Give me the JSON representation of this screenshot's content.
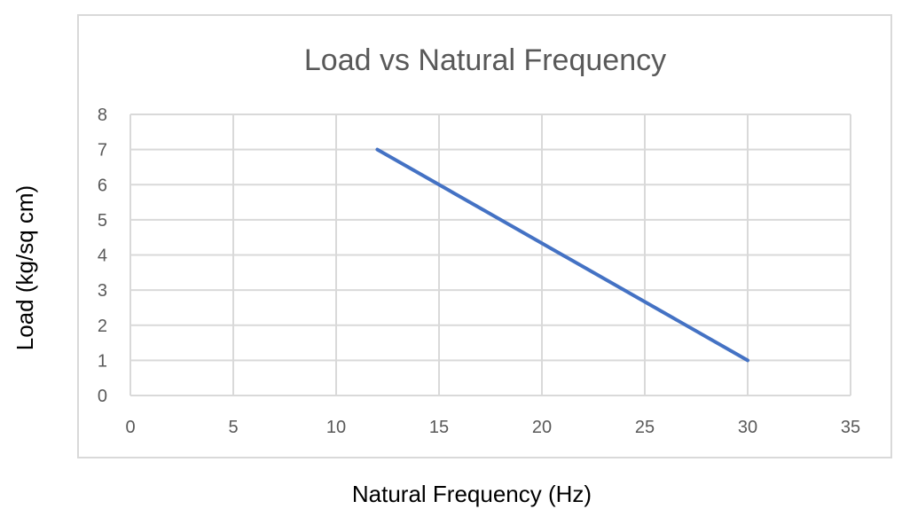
{
  "chart_data": {
    "type": "line",
    "title": "Load vs Natural Frequency",
    "xlabel": "Natural Frequency (Hz)",
    "ylabel": "Load (kg/sq cm)",
    "xlim": [
      0,
      35
    ],
    "ylim": [
      0,
      8
    ],
    "x_ticks": [
      "0",
      "5",
      "10",
      "15",
      "20",
      "25",
      "30",
      "35"
    ],
    "y_ticks": [
      "0",
      "1",
      "2",
      "3",
      "4",
      "5",
      "6",
      "7",
      "8"
    ],
    "grid": true,
    "legend": "none",
    "series": [
      {
        "color": "#4472c4",
        "points": [
          {
            "x": 12,
            "y": 7
          },
          {
            "x": 30,
            "y": 1
          }
        ]
      }
    ]
  }
}
